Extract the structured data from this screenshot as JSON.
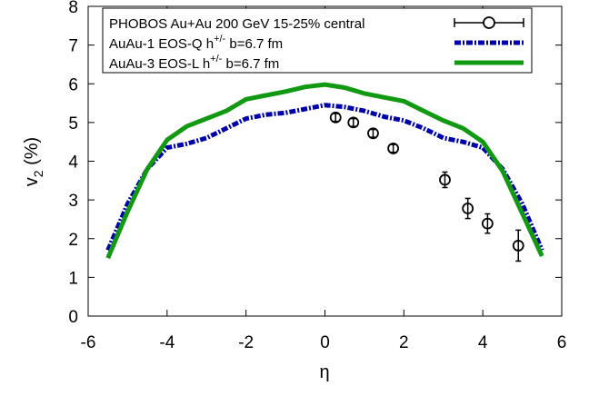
{
  "chart_data": {
    "type": "line",
    "title": "",
    "xlabel": "η",
    "ylabel": {
      "main": "v",
      "sub": "2",
      "tail": " (%)"
    },
    "xlim": [
      -6,
      6
    ],
    "ylim": [
      0,
      8
    ],
    "xticks": [
      -6,
      -4,
      -2,
      0,
      2,
      4,
      6
    ],
    "yticks": [
      0,
      1,
      2,
      3,
      4,
      5,
      6,
      7,
      8
    ],
    "grid": false,
    "legend_position": "top-center",
    "legend": [
      {
        "id": "phobos",
        "parts": [
          "PHOBOS Au+Au 200 GeV 15-25% central"
        ]
      },
      {
        "id": "eosq",
        "parts": [
          "AuAu-1 EOS-Q h",
          "+/-",
          " b=6.7 fm"
        ]
      },
      {
        "id": "eosl",
        "parts": [
          "AuAu-3 EOS-L h",
          "+/-",
          " b=6.7 fm"
        ]
      }
    ],
    "series": [
      {
        "id": "phobos",
        "style": "points-errorbars",
        "color": "#000000",
        "points": [
          {
            "x": 0.27,
            "y": 5.13,
            "err": 0.1
          },
          {
            "x": 0.72,
            "y": 5.0,
            "err": 0.1
          },
          {
            "x": 1.22,
            "y": 4.72,
            "err": 0.1
          },
          {
            "x": 1.73,
            "y": 4.33,
            "err": 0.1
          },
          {
            "x": 3.04,
            "y": 3.52,
            "err": 0.2
          },
          {
            "x": 3.62,
            "y": 2.78,
            "err": 0.26
          },
          {
            "x": 4.12,
            "y": 2.39,
            "err": 0.25
          },
          {
            "x": 4.9,
            "y": 1.82,
            "err": 0.4
          }
        ]
      },
      {
        "id": "eosq",
        "style": "dash-dot-line",
        "color": "#0000aa",
        "x": [
          -5.5,
          -5.0,
          -4.5,
          -4.0,
          -3.5,
          -3.0,
          -2.5,
          -2.0,
          -1.5,
          -1.0,
          -0.5,
          0.0,
          0.5,
          1.0,
          1.5,
          2.0,
          2.5,
          3.0,
          3.5,
          4.0,
          4.5,
          5.0,
          5.5
        ],
        "y": [
          1.7,
          2.9,
          3.8,
          4.35,
          4.45,
          4.6,
          4.85,
          5.1,
          5.2,
          5.25,
          5.35,
          5.45,
          5.4,
          5.3,
          5.15,
          5.05,
          4.85,
          4.6,
          4.5,
          4.35,
          3.8,
          2.9,
          1.7
        ]
      },
      {
        "id": "eosl",
        "style": "solid-thick",
        "color": "#119911",
        "x": [
          -5.5,
          -5.0,
          -4.5,
          -4.0,
          -3.5,
          -3.0,
          -2.5,
          -2.0,
          -1.5,
          -1.0,
          -0.5,
          0.0,
          0.5,
          1.0,
          1.5,
          2.0,
          2.5,
          3.0,
          3.5,
          4.0,
          4.5,
          5.0,
          5.5
        ],
        "y": [
          1.5,
          2.7,
          3.8,
          4.55,
          4.9,
          5.1,
          5.3,
          5.6,
          5.7,
          5.8,
          5.92,
          5.98,
          5.9,
          5.75,
          5.65,
          5.55,
          5.3,
          5.05,
          4.85,
          4.5,
          3.75,
          2.65,
          1.55
        ]
      }
    ]
  }
}
